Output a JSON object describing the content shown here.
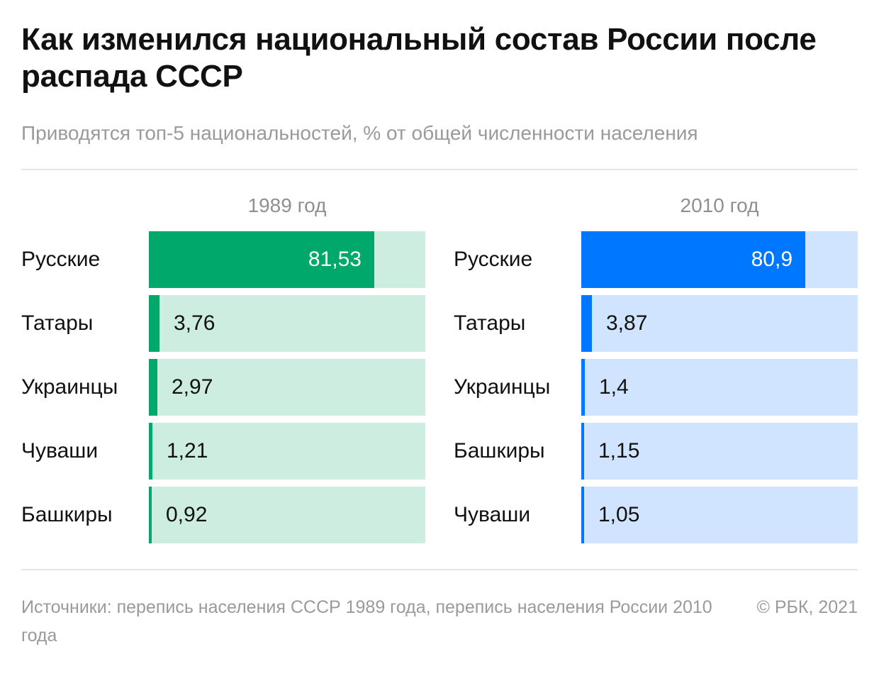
{
  "title": "Как изменился национальный состав России после распада СССР",
  "subtitle": "Приводятся топ-5 национальностей, % от общей численности населения",
  "source": "Источники: перепись населения СССР 1989 года, перепись населения России 2010 года",
  "copyright": "© РБК, 2021",
  "chart_data": [
    {
      "type": "bar",
      "orientation": "horizontal",
      "title": "1989 год",
      "categories": [
        "Русские",
        "Татары",
        "Украинцы",
        "Чуваши",
        "Башкиры"
      ],
      "values": [
        81.53,
        3.76,
        2.97,
        1.21,
        0.92
      ],
      "value_labels": [
        "81,53",
        "3,76",
        "2,97",
        "1,21",
        "0,92"
      ],
      "xlim": [
        0,
        100
      ],
      "colors": {
        "fill": "#00a96b",
        "track": "#cdede0"
      }
    },
    {
      "type": "bar",
      "orientation": "horizontal",
      "title": "2010 год",
      "categories": [
        "Русские",
        "Татары",
        "Украинцы",
        "Башкиры",
        "Чуваши"
      ],
      "values": [
        80.9,
        3.87,
        1.4,
        1.15,
        1.05
      ],
      "value_labels": [
        "80,9",
        "3,87",
        "1,4",
        "1,15",
        "1,05"
      ],
      "xlim": [
        0,
        100
      ],
      "colors": {
        "fill": "#0077ff",
        "track": "#d1e4ff"
      }
    }
  ]
}
